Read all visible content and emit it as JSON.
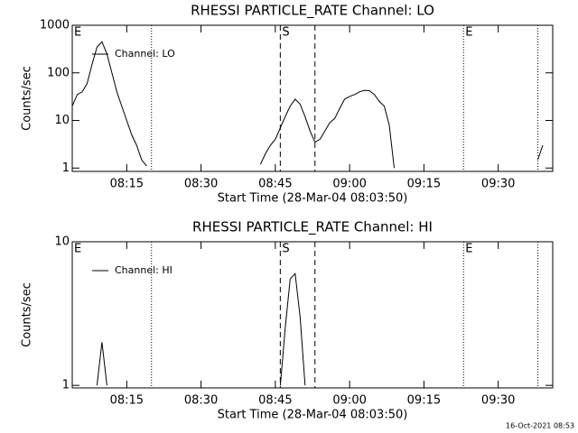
{
  "chart_data": [
    {
      "type": "line",
      "title": "RHESSI PARTICLE_RATE Channel: LO",
      "xlabel": "Start Time (28-Mar-04 08:03:50)",
      "ylabel": "Counts/sec",
      "x": [
        "08:04",
        "08:05",
        "08:06",
        "08:07",
        "08:08",
        "08:09",
        "08:10",
        "08:11",
        "08:12",
        "08:13",
        "08:14",
        "08:15",
        "08:16",
        "08:17",
        "08:18",
        "08:19",
        "08:20",
        "08:42",
        "08:43",
        "08:44",
        "08:45",
        "08:46",
        "08:47",
        "08:48",
        "08:49",
        "08:50",
        "08:51",
        "08:52",
        "08:53",
        "08:54",
        "08:55",
        "08:56",
        "08:57",
        "08:58",
        "08:59",
        "09:00",
        "09:01",
        "09:02",
        "09:03",
        "09:04",
        "09:05",
        "09:06",
        "09:07",
        "09:08",
        "09:09",
        "09:10",
        "09:38",
        "09:39"
      ],
      "series": [
        {
          "name": "Channel: LO",
          "color": "#000000",
          "values": [
            20,
            35,
            40,
            60,
            150,
            350,
            450,
            250,
            100,
            40,
            20,
            10,
            5,
            3,
            1.5,
            1.1,
            null,
            1.2,
            2,
            3,
            4,
            7,
            12,
            20,
            28,
            22,
            12,
            6,
            3.5,
            4,
            6,
            9,
            11,
            18,
            28,
            32,
            35,
            40,
            43,
            42,
            35,
            25,
            20,
            8,
            1,
            null,
            1.5,
            3
          ]
        }
      ],
      "xlim": [
        "08:04",
        "09:41"
      ],
      "xticks": [
        "08:15",
        "08:30",
        "08:45",
        "09:00",
        "09:15",
        "09:30"
      ],
      "ylim": [
        0.85,
        1000
      ],
      "yticks": [
        1,
        10,
        100,
        1000
      ],
      "log_y": true,
      "legend": "upper left",
      "markers": [
        {
          "x": "08:20",
          "style": "dotted"
        },
        {
          "x": "08:46",
          "style": "dashed"
        },
        {
          "x": "08:53",
          "style": "dashed"
        },
        {
          "x": "09:23",
          "style": "dotted"
        },
        {
          "x": "09:38",
          "style": "dotted"
        }
      ],
      "annotations": [
        {
          "text": "E",
          "x": "08:04"
        },
        {
          "text": "S",
          "x": "08:46"
        },
        {
          "text": "E",
          "x": "09:23"
        }
      ]
    },
    {
      "type": "line",
      "title": "RHESSI PARTICLE_RATE Channel: HI",
      "xlabel": "Start Time (28-Mar-04 08:03:50)",
      "ylabel": "Counts/sec",
      "x": [
        "08:09",
        "08:10",
        "08:11",
        "08:12",
        "08:46",
        "08:47",
        "08:48",
        "08:49",
        "08:50",
        "08:51"
      ],
      "series": [
        {
          "name": "Channel: HI",
          "color": "#000000",
          "values": [
            1,
            2,
            1,
            null,
            1,
            2.5,
            5.5,
            6,
            3,
            1
          ]
        }
      ],
      "xlim": [
        "08:04",
        "09:41"
      ],
      "xticks": [
        "08:15",
        "08:30",
        "08:45",
        "09:00",
        "09:15",
        "09:30"
      ],
      "ylim": [
        0.96,
        10
      ],
      "yticks": [
        1,
        10
      ],
      "log_y": true,
      "legend": "upper left",
      "markers": [
        {
          "x": "08:20",
          "style": "dotted"
        },
        {
          "x": "08:46",
          "style": "dashed"
        },
        {
          "x": "08:53",
          "style": "dashed"
        },
        {
          "x": "09:23",
          "style": "dotted"
        },
        {
          "x": "09:38",
          "style": "dotted"
        }
      ],
      "annotations": [
        {
          "text": "E",
          "x": "08:04"
        },
        {
          "text": "S",
          "x": "08:46"
        },
        {
          "text": "E",
          "x": "09:23"
        }
      ]
    }
  ],
  "footer": "16-Oct-2021 08:53"
}
